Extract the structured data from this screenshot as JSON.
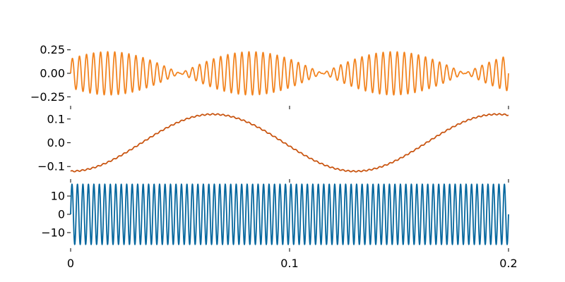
{
  "chart_data": [
    {
      "type": "line",
      "series": [
        {
          "color": "#f28522",
          "signal": "beat",
          "x_range": [
            0,
            0.2
          ],
          "carrier_cycles_per_unit": 310,
          "envelope_amplitude": 0.23,
          "envelope_zeros": [
            0.05,
            0.115,
            0.18
          ]
        }
      ],
      "yticks": [
        "0.25",
        "0.00",
        "−0.25"
      ],
      "ytick_values": [
        0.25,
        0,
        -0.25
      ],
      "xlim": [
        0,
        0.2
      ],
      "ylim": [
        -0.3,
        0.3
      ]
    },
    {
      "type": "line",
      "series": [
        {
          "color": "#c95511",
          "signal": "sine",
          "x_range": [
            0,
            0.2
          ],
          "amplitude": 0.12,
          "period": 0.13,
          "phase_min_at": 0
        }
      ],
      "yticks": [
        "0.1",
        "0.0",
        "−0.1"
      ],
      "ytick_values": [
        0.1,
        0,
        -0.1
      ],
      "xlim": [
        0,
        0.2
      ],
      "ylim": [
        -0.135,
        0.135
      ]
    },
    {
      "type": "line",
      "series": [
        {
          "color": "#05679e",
          "signal": "sine",
          "x_range": [
            0,
            0.2
          ],
          "amplitude": 16.5,
          "cycles": 80
        }
      ],
      "yticks": [
        "10",
        "0",
        "−10"
      ],
      "ytick_values": [
        10,
        0,
        -10
      ],
      "xticks": [
        "0",
        "0.1",
        "0.2"
      ],
      "xtick_values": [
        0,
        0.1,
        0.2
      ],
      "xlim": [
        0,
        0.2
      ],
      "ylim": [
        -18.5,
        18.5
      ]
    }
  ]
}
